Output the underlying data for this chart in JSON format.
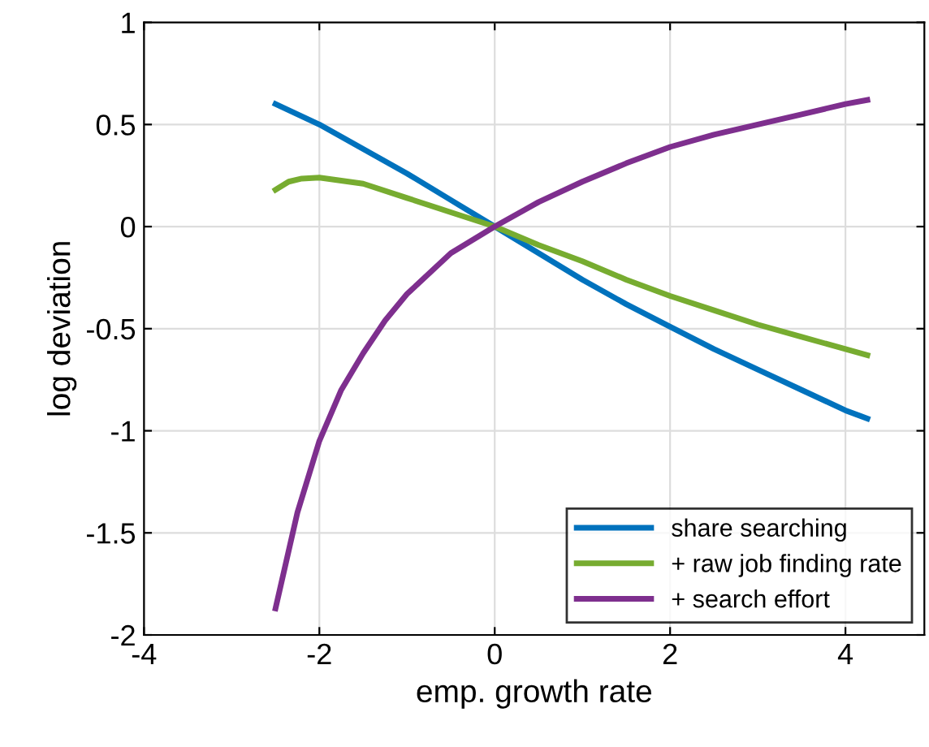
{
  "chart_data": {
    "type": "line",
    "xlabel": "emp. growth rate",
    "ylabel": "log deviation",
    "xlim": [
      -4,
      4.9
    ],
    "xticks": [
      -4,
      -2,
      0,
      2,
      4
    ],
    "ylim": [
      -2,
      1
    ],
    "yticks": [
      -2,
      -1.5,
      -1,
      -0.5,
      0,
      0.5,
      1
    ],
    "grid": true,
    "legend": "bottom right",
    "marker": "none",
    "line_style": "solid",
    "series": [
      {
        "name": "share searching",
        "color": "#0072bd",
        "x": [
          -2.5,
          -2,
          -1.5,
          -1,
          -0.5,
          0,
          0.5,
          1,
          1.5,
          2,
          2.5,
          3,
          3.5,
          4,
          4.25
        ],
        "values": [
          0.6,
          0.5,
          0.38,
          0.26,
          0.13,
          0,
          -0.13,
          -0.26,
          -0.38,
          -0.49,
          -0.6,
          -0.7,
          -0.8,
          -0.9,
          -0.94
        ]
      },
      {
        "name": "+ raw job finding rate",
        "color": "#77ac30",
        "x": [
          -2.5,
          -2.35,
          -2.2,
          -2,
          -1.5,
          -1,
          -0.5,
          0,
          0.5,
          1,
          1.5,
          2,
          2.5,
          3,
          3.5,
          4,
          4.25
        ],
        "values": [
          0.18,
          0.22,
          0.235,
          0.24,
          0.21,
          0.14,
          0.07,
          0,
          -0.09,
          -0.17,
          -0.26,
          -0.34,
          -0.41,
          -0.48,
          -0.54,
          -0.6,
          -0.63
        ]
      },
      {
        "name": "+ search effort",
        "color": "#7e2f8e",
        "x": [
          -2.5,
          -2.25,
          -2,
          -1.75,
          -1.5,
          -1.25,
          -1,
          -0.5,
          0,
          0.5,
          1,
          1.5,
          2,
          2.5,
          3,
          3.5,
          4,
          4.25
        ],
        "values": [
          -1.87,
          -1.4,
          -1.05,
          -0.8,
          -0.62,
          -0.46,
          -0.33,
          -0.13,
          0,
          0.12,
          0.22,
          0.31,
          0.39,
          0.45,
          0.5,
          0.55,
          0.6,
          0.62
        ]
      }
    ]
  }
}
